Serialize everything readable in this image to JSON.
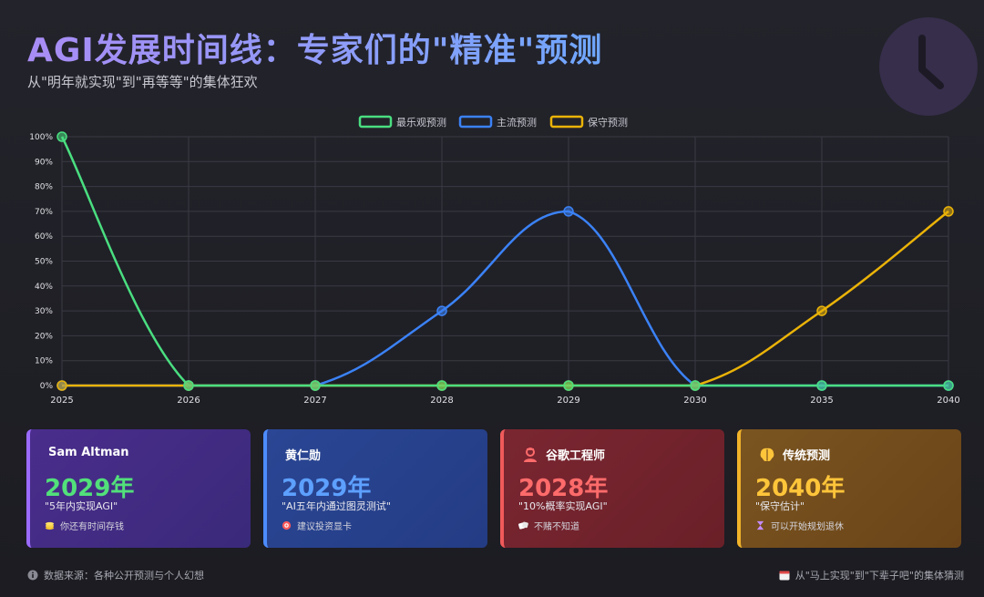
{
  "header": {
    "title": "AGI发展时间线：专家们的\"精准\"预测",
    "subtitle": "从\"明年就实现\"到\"再等等\"的集体狂欢"
  },
  "chart_data": {
    "type": "line",
    "categories": [
      "2025",
      "2026",
      "2027",
      "2028",
      "2029",
      "2030",
      "2035",
      "2040"
    ],
    "y_ticks": [
      "0%",
      "10%",
      "20%",
      "30%",
      "40%",
      "50%",
      "60%",
      "70%",
      "80%",
      "90%",
      "100%"
    ],
    "ylim": [
      0,
      100
    ],
    "grid": true,
    "legend_position": "top",
    "series": [
      {
        "name": "最乐观预测",
        "color": "#4ade80",
        "values": [
          100,
          0,
          0,
          0,
          0,
          0,
          0,
          0
        ]
      },
      {
        "name": "主流预测",
        "color": "#3b82f6",
        "values": [
          0,
          0,
          0,
          30,
          70,
          0,
          0,
          0
        ]
      },
      {
        "name": "保守预测",
        "color": "#eab308",
        "values": [
          0,
          0,
          0,
          0,
          0,
          0,
          30,
          70
        ]
      }
    ]
  },
  "cards": [
    {
      "name": "Sam Altman",
      "year": "2029年",
      "quote": "\"5年内实现AGI\"",
      "note": "你还有时间存钱",
      "icon": "none",
      "note_icon": "coins-icon"
    },
    {
      "name": "黄仁勋",
      "year": "2029年",
      "quote": "\"AI五年内通过图灵测试\"",
      "note": "建议投资显卡",
      "icon": "none",
      "note_icon": "chip-icon"
    },
    {
      "name": "谷歌工程师",
      "year": "2028年",
      "quote": "\"10%概率实现AGI\"",
      "note": "不赌不知道",
      "icon": "engineer-icon",
      "note_icon": "dice-icon"
    },
    {
      "name": "传统预测",
      "year": "2040年",
      "quote": "\"保守估计\"",
      "note": "可以开始规划退休",
      "icon": "brain-icon",
      "note_icon": "hourglass-icon"
    }
  ],
  "footer": {
    "source": "数据来源：各种公开预测与个人幻想",
    "note": "从\"马上实现\"到\"下辈子吧\"的集体猜测"
  },
  "colors": {
    "accent_purple": "#9b6bff",
    "accent_blue": "#4d8cff",
    "accent_red": "#f05a5a",
    "accent_yellow": "#f2b32a"
  }
}
